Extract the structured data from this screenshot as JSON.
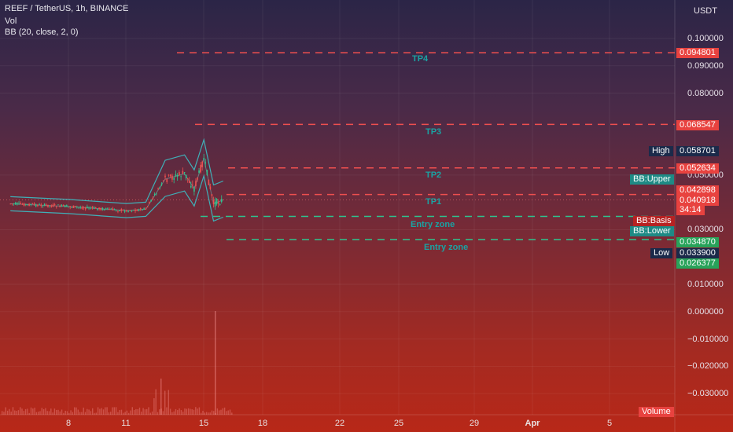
{
  "legend": {
    "symbol_line": "REEF / TetherUS, 1h, BINANCE",
    "vol_line": "Vol",
    "bb_line": "BB (20, close, 2, 0)"
  },
  "price_axis": {
    "currency": "USDT",
    "ticks": [
      "0.100000",
      "0.090000",
      "0.080000",
      "0.050000",
      "0.030000",
      "0.010000",
      "0.000000",
      "−0.010000",
      "−0.020000",
      "−0.030000"
    ]
  },
  "price_badges": {
    "tp4": "0.094801",
    "tp3": "0.068547",
    "high_label": "High",
    "high_value": "0.058701",
    "tp2": "0.052634",
    "bb_upper": "BB:Upper",
    "tp1": "0.042898",
    "last": "0.040918",
    "countdown": "34:14",
    "bb_basis": "BB:Basis",
    "bb_lower": "BB:Lower",
    "entry1": "0.034870",
    "low_label": "Low",
    "low_value": "0.033900",
    "entry2": "0.026377",
    "volume": "Volume"
  },
  "annotations": {
    "tp4": "TP4",
    "tp3": "TP3",
    "tp2": "TP2",
    "tp1": "TP1",
    "entry1": "Entry zone",
    "entry2": "Entry zone"
  },
  "time_axis": {
    "ticks": [
      "8",
      "11",
      "15",
      "18",
      "22",
      "25",
      "29",
      "Apr",
      "5"
    ]
  },
  "colors": {
    "red_line": "#ef4f4f",
    "green_line": "#2ec48f",
    "annotation": "#1aa3a3",
    "bb_band": "#3fb0b8",
    "badge_red": "#e8423f",
    "badge_green": "#28a35a",
    "badge_teal": "#1e8a85",
    "badge_navy": "#1b2a4a"
  },
  "chart_data": {
    "type": "line",
    "title": "REEF / TetherUS, 1h, BINANCE",
    "y_range": [
      -0.035,
      0.11
    ],
    "levels": [
      {
        "name": "TP4",
        "value": 0.094801
      },
      {
        "name": "TP3",
        "value": 0.068547
      },
      {
        "name": "TP2",
        "value": 0.052634
      },
      {
        "name": "TP1",
        "value": 0.042898
      },
      {
        "name": "Entry zone",
        "value": 0.03487
      },
      {
        "name": "Entry zone",
        "value": 0.026377
      }
    ],
    "high": 0.058701,
    "low": 0.0339,
    "last": 0.040918,
    "price_path": [
      {
        "x": "5",
        "y": 0.0395
      },
      {
        "x": "8",
        "y": 0.0385
      },
      {
        "x": "11",
        "y": 0.037
      },
      {
        "x": "12",
        "y": 0.0375
      },
      {
        "x": "13",
        "y": 0.0485
      },
      {
        "x": "14",
        "y": 0.0505
      },
      {
        "x": "14.5",
        "y": 0.045
      },
      {
        "x": "15",
        "y": 0.056
      },
      {
        "x": "15.5",
        "y": 0.0395
      },
      {
        "x": "16",
        "y": 0.0409
      }
    ],
    "grid": true
  }
}
